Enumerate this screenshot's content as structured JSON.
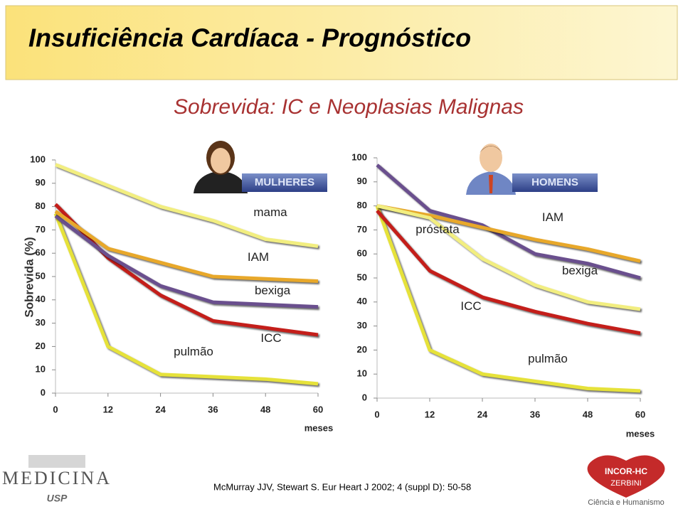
{
  "title": "Insuficiência Cardíaca - Prognóstico",
  "subtitle": "Sobrevida: IC e Neoplasias Malignas",
  "citation": "McMurray JJV, Stewart S. Eur Heart J 2002; 4 (suppl D): 50-58",
  "logo_left": {
    "name": "MEDICINA",
    "sub": "USP"
  },
  "logo_right": {
    "name": "INCOR-HC",
    "sub": "ZERBINI",
    "motto": "Ciência e Humanismo"
  },
  "chart_data": [
    {
      "type": "line",
      "badge": "MULHERES",
      "y_label": "Sobrevida (%)",
      "x_label": "meses",
      "x": [
        0,
        12,
        24,
        36,
        48,
        60
      ],
      "xlim": [
        0,
        60
      ],
      "xticks": [
        0,
        12,
        24,
        36,
        48,
        60
      ],
      "ylim": [
        0,
        100
      ],
      "yticks": [
        0,
        10,
        20,
        30,
        40,
        50,
        60,
        70,
        80,
        90,
        100
      ],
      "series": [
        {
          "name": "mama",
          "color": "#f2ee80",
          "values": [
            98,
            89,
            80,
            74,
            66,
            63
          ]
        },
        {
          "name": "IAM",
          "color": "#e8a82a",
          "values": [
            78,
            62,
            56,
            50,
            49,
            48
          ]
        },
        {
          "name": "bexiga",
          "color": "#6a4f8e",
          "values": [
            76,
            59,
            46,
            39,
            38,
            37
          ]
        },
        {
          "name": "ICC",
          "color": "#c41e1a",
          "values": [
            81,
            58,
            42,
            31,
            28,
            25
          ]
        },
        {
          "name": "pulmão",
          "color": "#e6e23a",
          "values": [
            77,
            20,
            8,
            7,
            6,
            4
          ]
        }
      ]
    },
    {
      "type": "line",
      "badge": "HOMENS",
      "x_label": "meses",
      "x": [
        0,
        12,
        24,
        36,
        48,
        60
      ],
      "xlim": [
        0,
        60
      ],
      "xticks": [
        0,
        12,
        24,
        36,
        48,
        60
      ],
      "ylim": [
        0,
        100
      ],
      "yticks": [
        0,
        10,
        20,
        30,
        40,
        50,
        60,
        70,
        80,
        90,
        100
      ],
      "series": [
        {
          "name": "próstata",
          "color": "#f2ee80",
          "values": [
            80,
            75,
            58,
            47,
            40,
            37
          ]
        },
        {
          "name": "IAM",
          "color": "#e8a82a",
          "values": [
            80,
            76,
            71,
            66,
            62,
            57
          ]
        },
        {
          "name": "bexiga",
          "color": "#6a4f8e",
          "values": [
            97,
            78,
            72,
            60,
            56,
            50
          ]
        },
        {
          "name": "ICC",
          "color": "#c41e1a",
          "values": [
            78,
            53,
            42,
            36,
            31,
            27
          ]
        },
        {
          "name": "pulmão",
          "color": "#e6e23a",
          "values": [
            80,
            20,
            10,
            7,
            4,
            3
          ]
        }
      ]
    }
  ]
}
